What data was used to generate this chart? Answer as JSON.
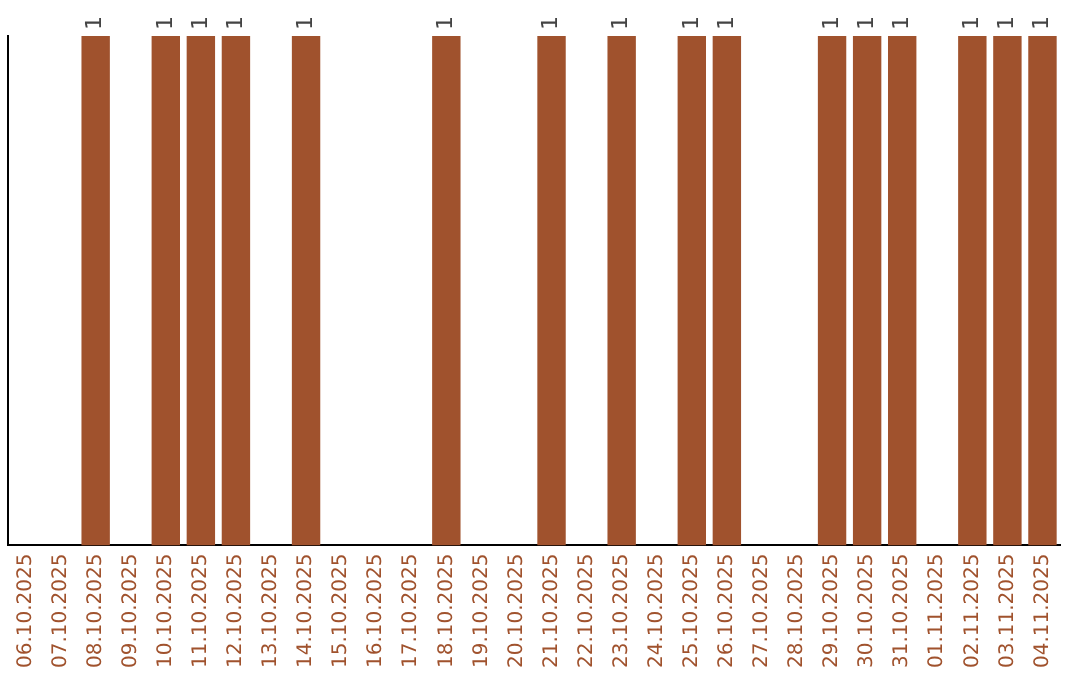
{
  "chart_data": {
    "type": "bar",
    "ylim": [
      0,
      1
    ],
    "tick_labels": "x",
    "color": "#a0522d",
    "categories": [
      "06.10.2025",
      "07.10.2025",
      "08.10.2025",
      "09.10.2025",
      "10.10.2025",
      "11.10.2025",
      "12.10.2025",
      "13.10.2025",
      "14.10.2025",
      "15.10.2025",
      "16.10.2025",
      "17.10.2025",
      "18.10.2025",
      "19.10.2025",
      "20.10.2025",
      "21.10.2025",
      "22.10.2025",
      "23.10.2025",
      "24.10.2025",
      "25.10.2025",
      "26.10.2025",
      "27.10.2025",
      "28.10.2025",
      "29.10.2025",
      "30.10.2025",
      "31.10.2025",
      "01.11.2025",
      "02.11.2025",
      "03.11.2025",
      "04.11.2025"
    ],
    "values": [
      0,
      0,
      1,
      0,
      1,
      1,
      1,
      0,
      1,
      0,
      0,
      0,
      1,
      0,
      0,
      1,
      0,
      1,
      0,
      1,
      1,
      0,
      0,
      1,
      1,
      1,
      0,
      1,
      1,
      1
    ],
    "value_labels": [
      null,
      null,
      "1",
      null,
      "1",
      "1",
      "1",
      null,
      "1",
      null,
      null,
      null,
      "1",
      null,
      null,
      "1",
      null,
      "1",
      null,
      "1",
      "1",
      null,
      null,
      "1",
      "1",
      "1",
      null,
      "1",
      "1",
      "1"
    ],
    "grid": false,
    "legend": false
  }
}
